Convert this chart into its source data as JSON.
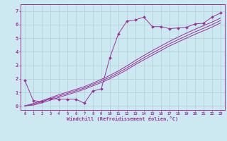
{
  "line1_x": [
    0,
    1,
    2,
    3,
    4,
    5,
    6,
    7,
    8,
    9,
    10,
    11,
    12,
    13,
    14,
    15,
    16,
    17,
    18,
    19,
    20,
    21,
    22,
    23
  ],
  "line1_y": [
    1.9,
    0.4,
    0.3,
    0.55,
    0.5,
    0.5,
    0.5,
    0.2,
    1.1,
    1.25,
    3.55,
    5.3,
    6.25,
    6.35,
    6.55,
    5.85,
    5.85,
    5.7,
    5.75,
    5.8,
    6.05,
    6.1,
    6.55,
    6.85
  ],
  "line2_x": [
    0,
    1,
    2,
    3,
    4,
    5,
    6,
    7,
    8,
    9,
    10,
    11,
    12,
    13,
    14,
    15,
    16,
    17,
    18,
    19,
    20,
    21,
    22,
    23
  ],
  "line2_y": [
    0.0,
    0.18,
    0.38,
    0.6,
    0.82,
    1.02,
    1.22,
    1.42,
    1.68,
    1.96,
    2.25,
    2.58,
    2.95,
    3.35,
    3.72,
    4.08,
    4.42,
    4.76,
    5.07,
    5.37,
    5.65,
    5.92,
    6.18,
    6.48
  ],
  "line3_x": [
    0,
    1,
    2,
    3,
    4,
    5,
    6,
    7,
    8,
    9,
    10,
    11,
    12,
    13,
    14,
    15,
    16,
    17,
    18,
    19,
    20,
    21,
    22,
    23
  ],
  "line3_y": [
    0.0,
    0.12,
    0.3,
    0.52,
    0.72,
    0.92,
    1.12,
    1.32,
    1.58,
    1.84,
    2.12,
    2.45,
    2.8,
    3.18,
    3.55,
    3.9,
    4.24,
    4.58,
    4.88,
    5.17,
    5.46,
    5.72,
    5.99,
    6.3
  ],
  "line4_x": [
    0,
    1,
    2,
    3,
    4,
    5,
    6,
    7,
    8,
    9,
    10,
    11,
    12,
    13,
    14,
    15,
    16,
    17,
    18,
    19,
    20,
    21,
    22,
    23
  ],
  "line4_y": [
    0.0,
    0.06,
    0.22,
    0.42,
    0.62,
    0.82,
    1.02,
    1.22,
    1.48,
    1.72,
    2.0,
    2.32,
    2.66,
    3.05,
    3.4,
    3.74,
    4.08,
    4.42,
    4.71,
    5.0,
    5.28,
    5.54,
    5.81,
    6.12
  ],
  "line_color": "#993399",
  "marker_color": "#993399",
  "bg_color": "#cce8f0",
  "grid_color": "#b0ccd4",
  "axis_color": "#993399",
  "tick_color": "#993399",
  "xlabel": "Windchill (Refroidissement éolien,°C)",
  "xlim": [
    -0.5,
    23.5
  ],
  "ylim": [
    -0.3,
    7.5
  ],
  "xticks": [
    0,
    1,
    2,
    3,
    4,
    5,
    6,
    7,
    8,
    9,
    10,
    11,
    12,
    13,
    14,
    15,
    16,
    17,
    18,
    19,
    20,
    21,
    22,
    23
  ],
  "yticks": [
    0,
    1,
    2,
    3,
    4,
    5,
    6,
    7
  ]
}
